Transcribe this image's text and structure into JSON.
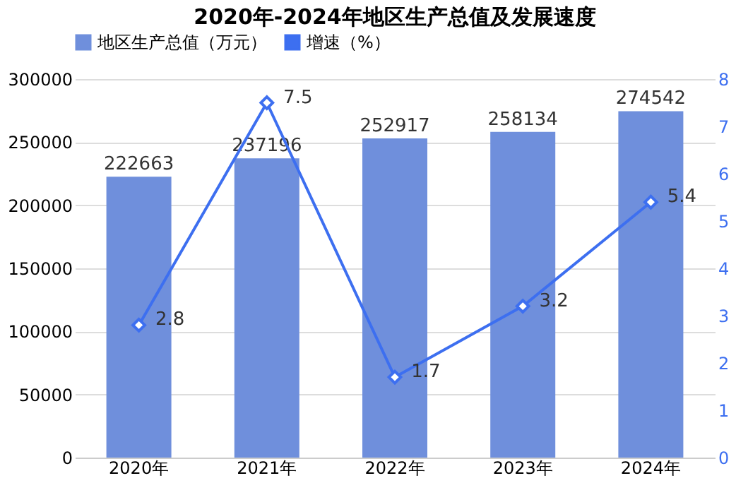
{
  "chart_data": {
    "type": "bar",
    "title": "2020年-2024年地区生产总值及发展速度",
    "categories": [
      "2020年",
      "2021年",
      "2022年",
      "2023年",
      "2024年"
    ],
    "series": [
      {
        "name": "地区生产总值（万元）",
        "color": "#6f8fdc",
        "values": [
          222663,
          237196,
          252917,
          258134,
          274542
        ]
      },
      {
        "name": "增速（%）",
        "type": "line",
        "axis": "y2",
        "color": "#3d6ff0",
        "values": [
          2.8,
          7.5,
          1.7,
          3.2,
          5.4
        ]
      }
    ],
    "ylim": [
      0,
      300000
    ],
    "yticks": [
      0,
      50000,
      100000,
      150000,
      200000,
      250000,
      300000
    ],
    "y2lim": [
      0,
      8
    ],
    "y2ticks": [
      0,
      1,
      2,
      3,
      4,
      5,
      6,
      7,
      8
    ],
    "grid": "y",
    "legend": "top",
    "marker": "diamond",
    "data_labels": true
  }
}
